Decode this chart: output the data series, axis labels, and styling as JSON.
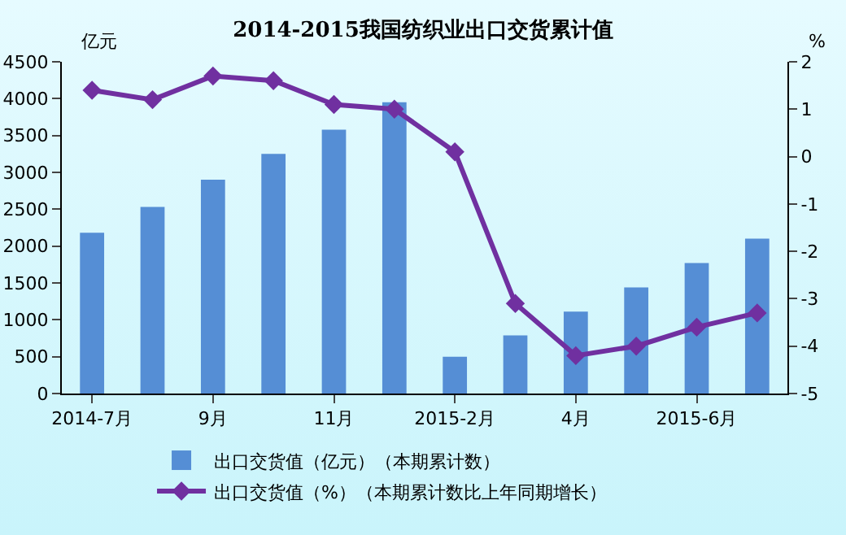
{
  "chart_data": {
    "type": "bar",
    "title": "2014-2015我国纺织业出口交货累计值",
    "ylabel": "亿元",
    "y2label": "%",
    "categories": [
      "2014-7月",
      null,
      "9月",
      null,
      "11月",
      null,
      "2015-2月",
      null,
      "4月",
      null,
      "2015-6月",
      null
    ],
    "series": [
      {
        "name": "出口交货值（亿元）（本期累计数）",
        "color": "#558ed5",
        "values": [
          2180,
          2530,
          2900,
          3250,
          3580,
          3950,
          500,
          790,
          1110,
          1440,
          1770,
          2100
        ]
      },
      {
        "name": "出口交货值（%）（本期累计数比上年同期增长）",
        "type": "line",
        "axis": "y2",
        "color": "#7030a0",
        "marker": "diamond",
        "values": [
          1.4,
          1.2,
          1.7,
          1.6,
          1.1,
          1.0,
          0.1,
          -3.1,
          -4.2,
          -4.0,
          -3.6,
          -3.3
        ]
      }
    ],
    "ylim": [
      0,
      4500
    ],
    "yticks": [
      0,
      500,
      1000,
      1500,
      2000,
      2500,
      3000,
      3500,
      4000,
      4500
    ],
    "y2lim": [
      -5,
      2
    ],
    "y2ticks": [
      -5,
      -4,
      -3,
      -2,
      -1,
      0,
      1,
      2
    ],
    "grid": false,
    "legend": "bottom"
  }
}
